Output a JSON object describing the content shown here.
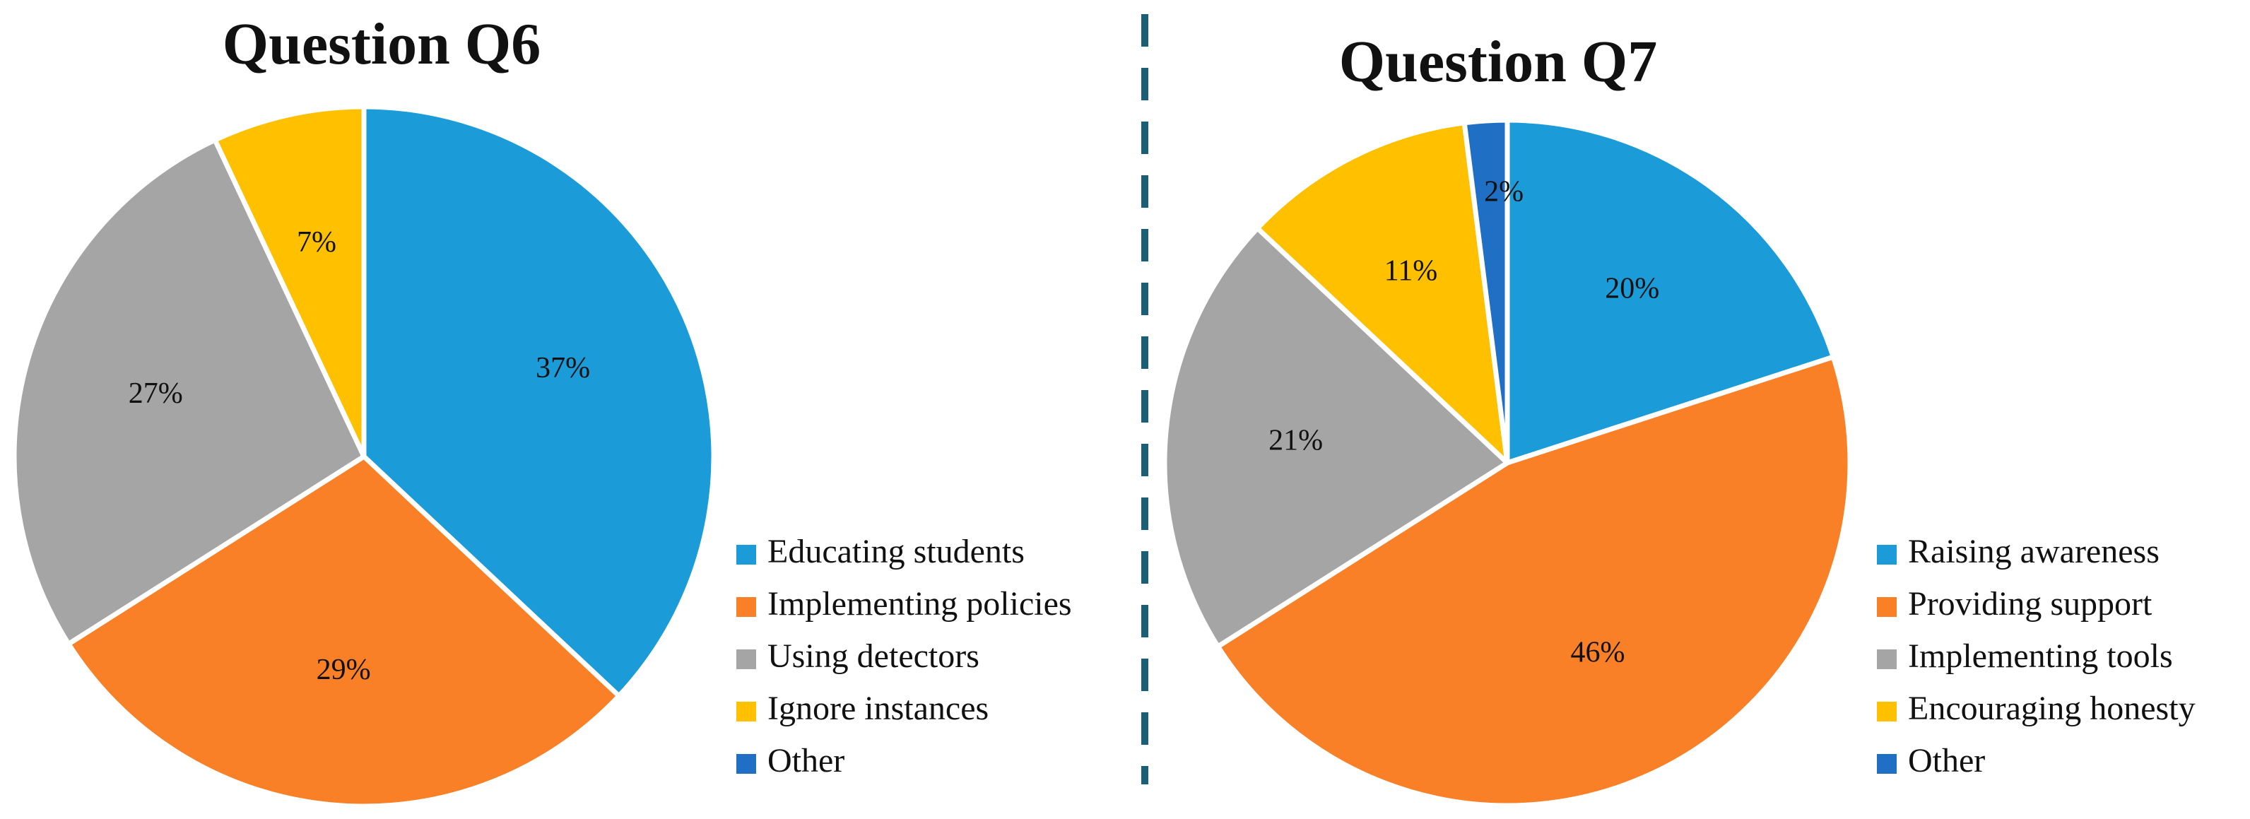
{
  "chart_data": [
    {
      "type": "pie",
      "title": "Question Q6",
      "categories": [
        "Educating students",
        "Implementing policies",
        "Using detectors",
        "Ignore instances",
        "Other"
      ],
      "values": [
        37,
        29,
        27,
        7,
        0
      ],
      "labels": [
        "37%",
        "29%",
        "27%",
        "7%",
        ""
      ],
      "colors": [
        "#1B9BD7",
        "#F98026",
        "#A5A5A5",
        "#FFC000",
        "#1F6FC5"
      ],
      "legend": "right-bottom",
      "start_angle": "12 o'clock",
      "direction": "clockwise"
    },
    {
      "type": "pie",
      "title": "Question Q7",
      "categories": [
        "Raising awareness",
        "Providing support",
        "Implementing tools",
        "Encouraging honesty",
        "Other"
      ],
      "values": [
        20,
        46,
        21,
        11,
        2
      ],
      "labels": [
        "20%",
        "46%",
        "21%",
        "11%",
        "2%"
      ],
      "colors": [
        "#1B9BD7",
        "#F98026",
        "#A5A5A5",
        "#FFC000",
        "#1F6FC5"
      ],
      "legend": "right-bottom",
      "start_angle": "12 o'clock",
      "direction": "clockwise"
    }
  ],
  "divider": {
    "style": "dashed",
    "color": "#1B5E78"
  }
}
